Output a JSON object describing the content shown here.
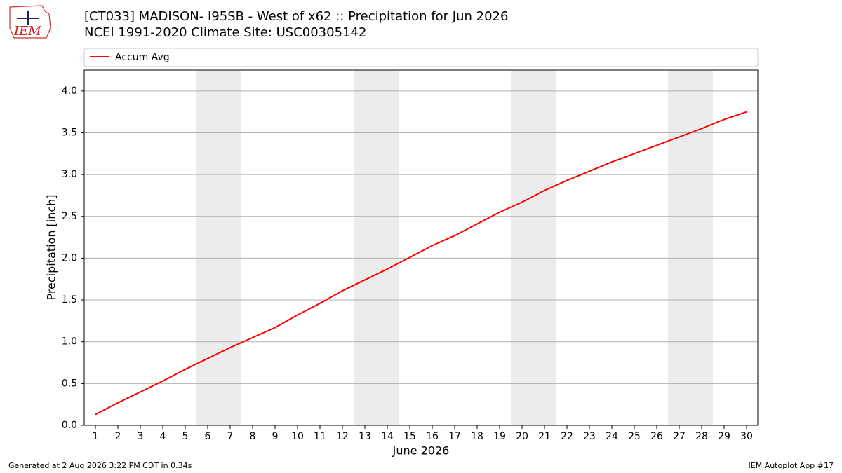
{
  "logo_text": "IEM",
  "chart_data": {
    "type": "line",
    "title": "[CT033] MADISON- I95SB - West of x62  :: Precipitation for Jun 2026",
    "subtitle": "NCEI 1991-2020 Climate Site: USC00305142",
    "x_label": "June 2026",
    "y_label": "Precipitation [inch]",
    "x": [
      1,
      2,
      3,
      4,
      5,
      6,
      7,
      8,
      9,
      10,
      11,
      12,
      13,
      14,
      15,
      16,
      17,
      18,
      19,
      20,
      21,
      22,
      23,
      24,
      25,
      26,
      27,
      28,
      29,
      30
    ],
    "series": [
      {
        "name": "Accum Avg",
        "color": "#ff0000",
        "values": [
          0.13,
          0.27,
          0.4,
          0.53,
          0.67,
          0.8,
          0.93,
          1.05,
          1.17,
          1.32,
          1.46,
          1.61,
          1.74,
          1.87,
          2.01,
          2.15,
          2.27,
          2.41,
          2.55,
          2.67,
          2.81,
          2.93,
          3.04,
          3.15,
          3.25,
          3.35,
          3.45,
          3.55,
          3.66,
          3.75
        ]
      }
    ],
    "xlim": [
      0.5,
      30.5
    ],
    "xticks": [
      1,
      2,
      3,
      4,
      5,
      6,
      7,
      8,
      9,
      10,
      11,
      12,
      13,
      14,
      15,
      16,
      17,
      18,
      19,
      20,
      21,
      22,
      23,
      24,
      25,
      26,
      27,
      28,
      29,
      30
    ],
    "ylim": [
      0,
      4.25
    ],
    "yticks": [
      {
        "value": 0,
        "label": "0.0"
      },
      0.5,
      {
        "value": 1,
        "label": "1.0"
      },
      1.5,
      {
        "value": 2,
        "label": "2.0"
      },
      2.5,
      {
        "value": 3,
        "label": "3.0"
      },
      3.5,
      {
        "value": 4,
        "label": "4.0"
      }
    ],
    "shaded_x": [
      [
        5.5,
        7.5
      ],
      [
        12.5,
        14.5
      ],
      [
        19.5,
        21.5
      ],
      [
        26.5,
        28.5
      ]
    ],
    "shade_color": "#ececec",
    "grid": true,
    "legend": "top"
  },
  "footer": {
    "left": "Generated at 2 Aug 2026 3:22 PM CDT in 0.34s",
    "right": "IEM Autoplot App #17"
  }
}
